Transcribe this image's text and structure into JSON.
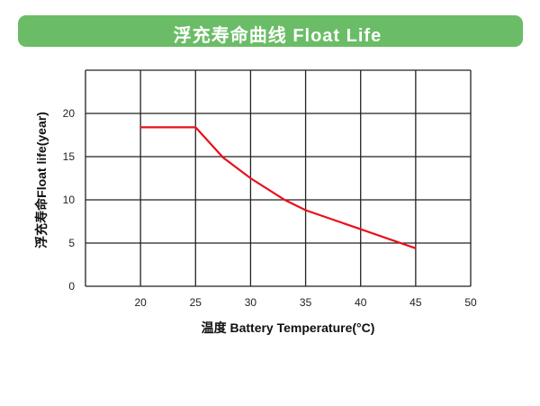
{
  "chart_data": {
    "type": "line",
    "title": "浮充寿命曲线 Float Life",
    "xlabel": "温度 Battery Temperature(°C)",
    "ylabel": "浮充寿命Float life(year)",
    "xlim": [
      15,
      50
    ],
    "ylim": [
      0,
      25
    ],
    "xticks": [
      20,
      25,
      30,
      35,
      40,
      45,
      50
    ],
    "yticks": [
      0,
      5,
      10,
      15,
      20
    ],
    "grid": true,
    "series": [
      {
        "color": "#e8101c",
        "x": [
          20,
          25,
          27.5,
          30,
          33.1,
          35,
          40,
          45
        ],
        "y": [
          18.4,
          18.4,
          14.9,
          12.5,
          10.0,
          8.8,
          6.6,
          4.4
        ]
      }
    ]
  },
  "colors": {
    "header": "#6abd66",
    "grid": "#222222"
  }
}
